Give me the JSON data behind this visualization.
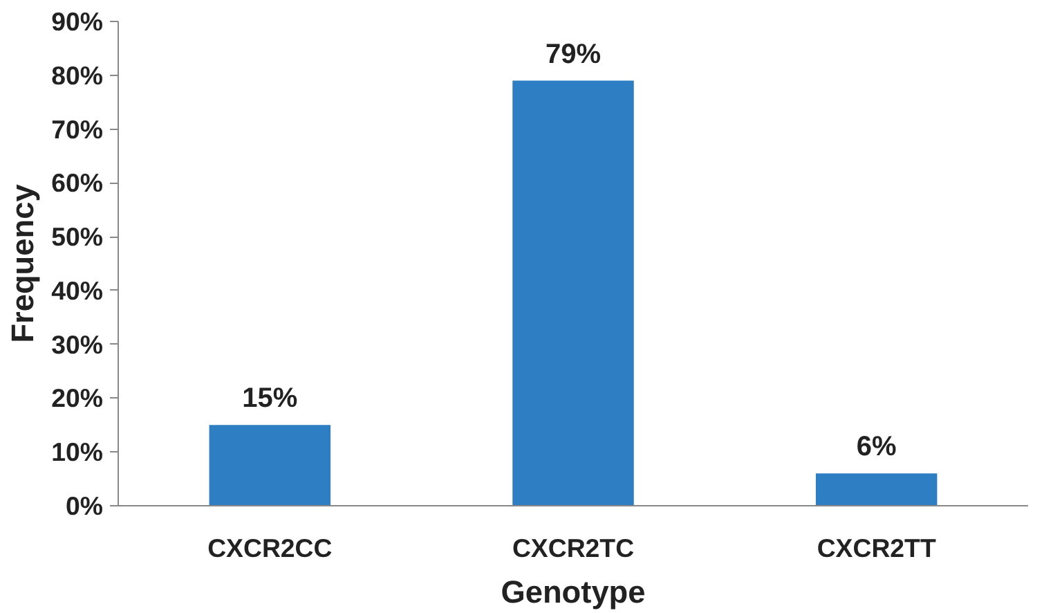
{
  "chart_data": {
    "type": "bar",
    "xlabel": "Genotype",
    "ylabel": "Frequency",
    "categories": [
      "CXCR2CC",
      "CXCR2TC",
      "CXCR2TT"
    ],
    "values": [
      15,
      79,
      6
    ],
    "value_labels": [
      "15%",
      "79%",
      "6%"
    ],
    "color": "#2e7ec3",
    "ylim": [
      0,
      90
    ],
    "yticks": [
      {
        "value": 0,
        "label": "0%"
      },
      {
        "value": 10,
        "label": "10%"
      },
      {
        "value": 20,
        "label": "20%"
      },
      {
        "value": 30,
        "label": "30%"
      },
      {
        "value": 40,
        "label": "40%"
      },
      {
        "value": 50,
        "label": "50%"
      },
      {
        "value": 60,
        "label": "60%"
      },
      {
        "value": 70,
        "label": "70%"
      },
      {
        "value": 80,
        "label": "80%"
      },
      {
        "value": 90,
        "label": "90%"
      }
    ],
    "grid": false
  }
}
